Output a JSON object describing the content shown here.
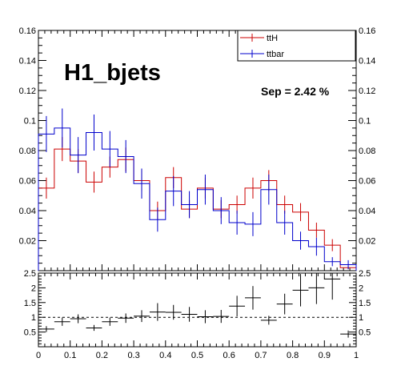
{
  "chart_data": [
    {
      "type": "histogram",
      "title": "H1_bjets",
      "annotation": "Sep = 2.42 %",
      "xlim": [
        0,
        1
      ],
      "ylim": [
        0,
        0.16
      ],
      "yticks": [
        "0.02",
        "0.04",
        "0.06",
        "0.08",
        "0.1",
        "0.12",
        "0.14",
        "0.16"
      ],
      "legend": {
        "placement": "top-right",
        "entries": [
          "ttH",
          "ttbar"
        ]
      },
      "bin_edges": [
        0,
        0.05,
        0.1,
        0.15,
        0.2,
        0.25,
        0.3,
        0.35,
        0.4,
        0.45,
        0.5,
        0.55,
        0.6,
        0.65,
        0.7,
        0.75,
        0.8,
        0.85,
        0.9,
        0.95,
        1.0
      ],
      "series": [
        {
          "name": "ttH",
          "color": "#cc0000",
          "values": [
            0.055,
            0.081,
            0.073,
            0.059,
            0.069,
            0.074,
            0.06,
            0.04,
            0.062,
            0.041,
            0.055,
            0.041,
            0.044,
            0.055,
            0.06,
            0.044,
            0.039,
            0.027,
            0.017,
            0.002
          ],
          "errors": [
            0.007,
            0.008,
            0.008,
            0.007,
            0.007,
            0.008,
            0.007,
            0.006,
            0.007,
            0.006,
            0.007,
            0.006,
            0.006,
            0.007,
            0.007,
            0.006,
            0.006,
            0.005,
            0.004,
            0.001
          ]
        },
        {
          "name": "ttbar",
          "color": "#0000cc",
          "values": [
            0.091,
            0.095,
            0.077,
            0.092,
            0.081,
            0.076,
            0.058,
            0.034,
            0.053,
            0.044,
            0.054,
            0.04,
            0.032,
            0.031,
            0.054,
            0.032,
            0.02,
            0.016,
            0.006,
            0.004
          ],
          "errors": [
            0.012,
            0.013,
            0.012,
            0.012,
            0.012,
            0.011,
            0.01,
            0.008,
            0.01,
            0.009,
            0.01,
            0.009,
            0.008,
            0.008,
            0.01,
            0.008,
            0.006,
            0.006,
            0.003,
            0.003
          ]
        }
      ]
    },
    {
      "type": "ratio",
      "xlim": [
        0,
        1
      ],
      "ylim": [
        0,
        2.5
      ],
      "xticks": [
        "0",
        "0.1",
        "0.2",
        "0.3",
        "0.4",
        "0.5",
        "0.6",
        "0.7",
        "0.8",
        "0.9",
        "1"
      ],
      "yticks": [
        "0.5",
        "1",
        "1.5",
        "2",
        "2.5"
      ],
      "reference_line": 1,
      "values": [
        0.6,
        0.85,
        0.95,
        0.64,
        0.85,
        0.97,
        1.04,
        1.18,
        1.17,
        1.1,
        1.02,
        1.03,
        1.38,
        1.66,
        0.9,
        1.45,
        1.92,
        2.0,
        2.3,
        0.43
      ],
      "errors": [
        0.1,
        0.14,
        0.15,
        0.1,
        0.14,
        0.16,
        0.2,
        0.3,
        0.25,
        0.25,
        0.22,
        0.22,
        0.35,
        0.4,
        0.15,
        0.35,
        0.55,
        0.55,
        0.7,
        0.12
      ]
    }
  ]
}
